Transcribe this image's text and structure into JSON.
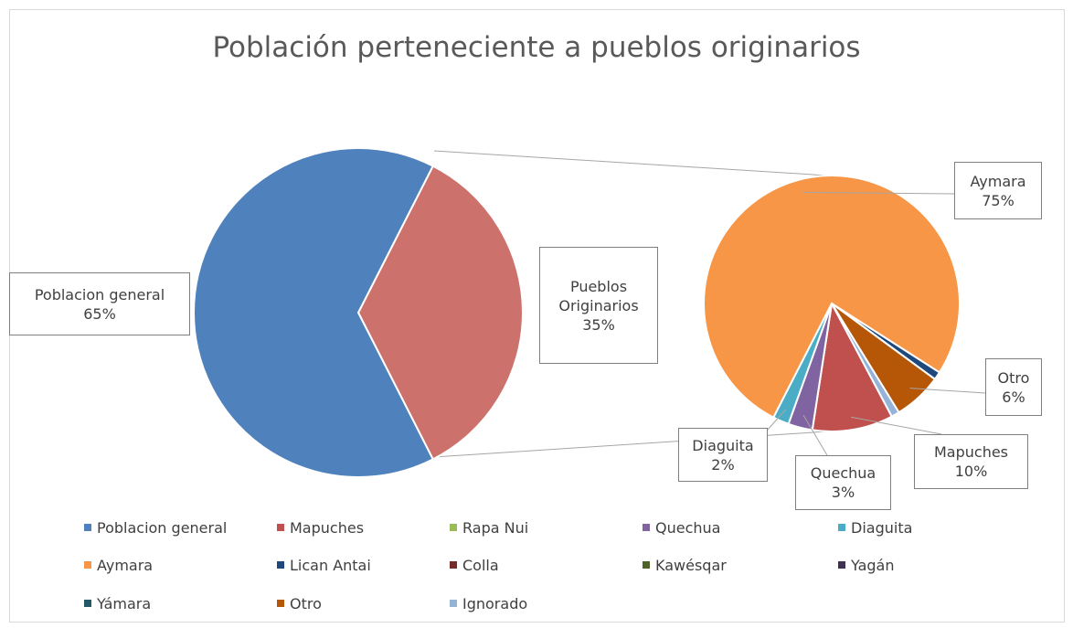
{
  "chart_data": {
    "type": "pie-of-pie",
    "title": "Población perteneciente a pueblos originarios",
    "categories": [
      "Poblacion general",
      "Mapuches",
      "Rapa Nui",
      "Quechua",
      "Diaguita",
      "Aymara",
      "Lican Antai",
      "Colla",
      "Kawésqar",
      "Yagán",
      "Yámara",
      "Otro",
      "Ignorado"
    ],
    "colors": [
      "#4f81bd",
      "#c0504d",
      "#9bbb59",
      "#8064a2",
      "#4bacc6",
      "#f79646",
      "#1f497d",
      "#772c2a",
      "#4f6228",
      "#3f3151",
      "#215968",
      "#b65708",
      "#95b3d7"
    ],
    "values": [
      65,
      10,
      0,
      3,
      2,
      75,
      1,
      0,
      0,
      0,
      0,
      6,
      1
    ],
    "value_labels": [
      "65%",
      "10%",
      null,
      "3%",
      "2%",
      "75%",
      null,
      null,
      null,
      null,
      null,
      "6%",
      null
    ],
    "other": {
      "name": "Pueblos Originarios",
      "value": 35,
      "value_label": "35%",
      "color": "#cd716d"
    }
  }
}
